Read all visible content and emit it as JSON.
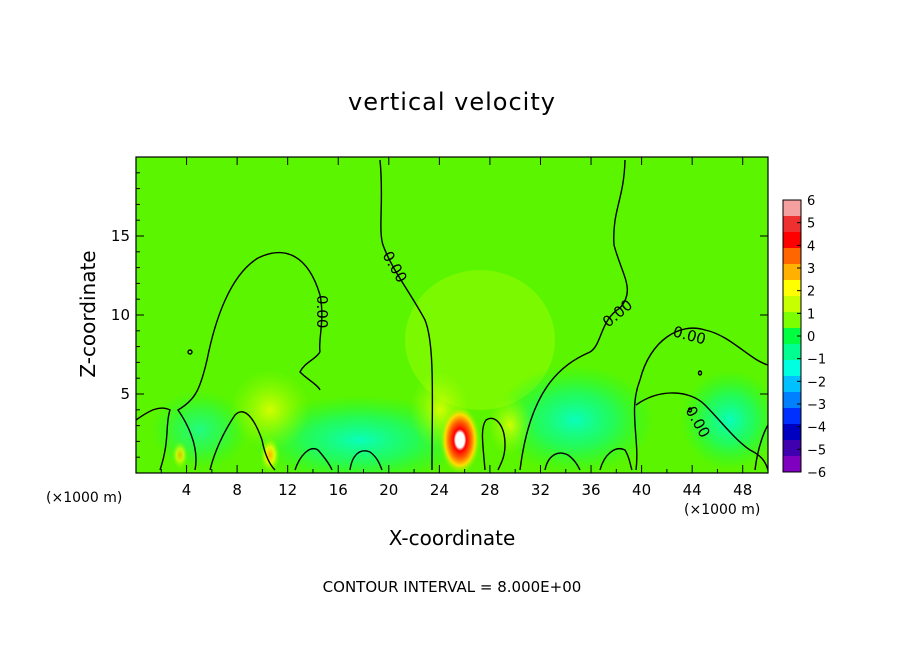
{
  "chart_data": {
    "type": "heatmap",
    "title": "vertical velocity",
    "xlabel": "X-coordinate",
    "ylabel": "Z-coordinate",
    "x_unit": "(×1000 m)",
    "xlim": [
      0,
      50
    ],
    "ylim": [
      0,
      20
    ],
    "x_ticks": [
      4,
      8,
      12,
      16,
      20,
      24,
      28,
      32,
      36,
      40,
      44,
      48
    ],
    "y_ticks": [
      5,
      10,
      15
    ],
    "colorbar_ticks": [
      6,
      5,
      4,
      3,
      2,
      1,
      0,
      -1,
      -2,
      -3,
      -4,
      -5,
      -6
    ],
    "colorbar_colors": [
      "#f4a0a0",
      "#ee3030",
      "#ff0000",
      "#ff6600",
      "#ffb000",
      "#ffff00",
      "#c8ff00",
      "#7cff00",
      "#00ff40",
      "#00ff90",
      "#00ffe0",
      "#00c0ff",
      "#0080ff",
      "#0030ff",
      "#0000c0",
      "#4000b0",
      "#8000c0"
    ],
    "background_value": 0.5,
    "contour_label": "0.00",
    "contour_interval_text": "CONTOUR INTERVAL = 8.000E+00",
    "features": [
      {
        "x": 25.8,
        "z": 2.0,
        "value": 6.5
      },
      {
        "x": 10.5,
        "z": 1.5,
        "value": 3
      },
      {
        "x": 29.5,
        "z": 3.0,
        "value": 2
      },
      {
        "x": 27.5,
        "z": 8.0,
        "value": 1.5
      },
      {
        "x": 18.0,
        "z": 2.5,
        "value": -1.5
      },
      {
        "x": 34.5,
        "z": 3.0,
        "value": -2
      },
      {
        "x": 47.0,
        "z": 3.5,
        "value": -1
      }
    ]
  }
}
